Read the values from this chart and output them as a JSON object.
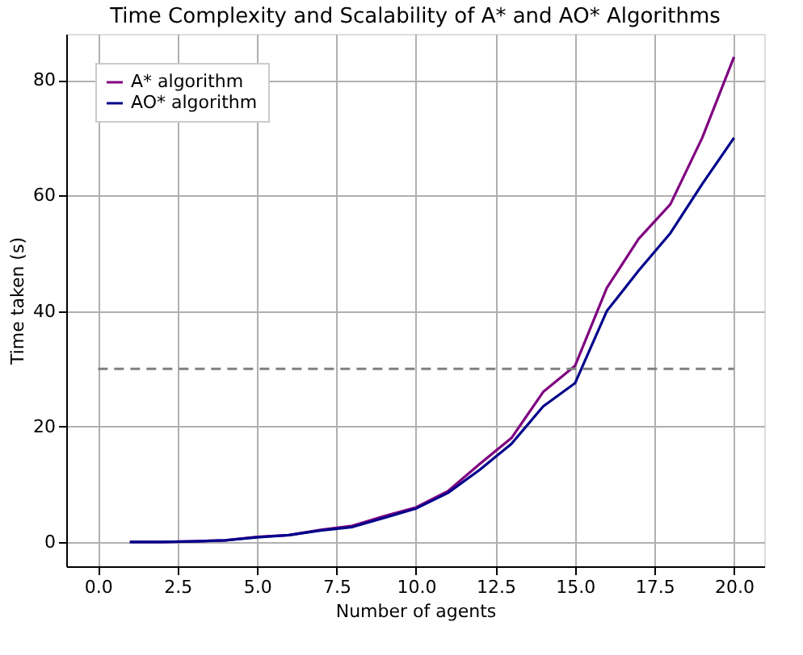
{
  "chart_data": {
    "type": "line",
    "title": "Time Complexity and Scalability of A* and AO* Algorithms",
    "xlabel": "Number of agents",
    "ylabel": "Time taken (s)",
    "x": [
      1,
      2,
      3,
      4,
      5,
      6,
      7,
      8,
      9,
      10,
      11,
      12,
      13,
      14,
      15,
      16,
      17,
      18,
      19,
      20
    ],
    "series": [
      {
        "name": "A* algorithm",
        "color": "#800080",
        "values": [
          0.0,
          0.0,
          0.1,
          0.3,
          0.9,
          1.2,
          2.1,
          2.8,
          4.5,
          6,
          8.8,
          13.5,
          18,
          26,
          30.5,
          44,
          52.5,
          58.5,
          70,
          84
        ]
      },
      {
        "name": "AO* algorithm",
        "color": "#00008b",
        "values": [
          0.0,
          0.0,
          0.1,
          0.3,
          0.8,
          1.2,
          2.0,
          2.6,
          4.2,
          5.8,
          8.5,
          12.5,
          17,
          23.5,
          27.5,
          40,
          47,
          53.5,
          62,
          70
        ]
      }
    ],
    "xlim": [
      -1,
      20.95
    ],
    "xticks": [
      {
        "value": 0,
        "label": "0.0"
      },
      2.5,
      {
        "value": 5,
        "label": "5.0"
      },
      7.5,
      {
        "value": 10,
        "label": "10.0"
      },
      12.5,
      {
        "value": 15,
        "label": "15.0"
      },
      17.5,
      {
        "value": 20,
        "label": "20.0"
      }
    ],
    "ylim": [
      -4.2,
      88
    ],
    "yticks": [
      0,
      20,
      40,
      60,
      80
    ],
    "ref_lines": [
      {
        "axis": "y",
        "value": 30,
        "color": "#808080",
        "line_style": "dashed"
      }
    ],
    "grid": true,
    "legend": "top left",
    "line_style": "solid",
    "marker": "none"
  }
}
